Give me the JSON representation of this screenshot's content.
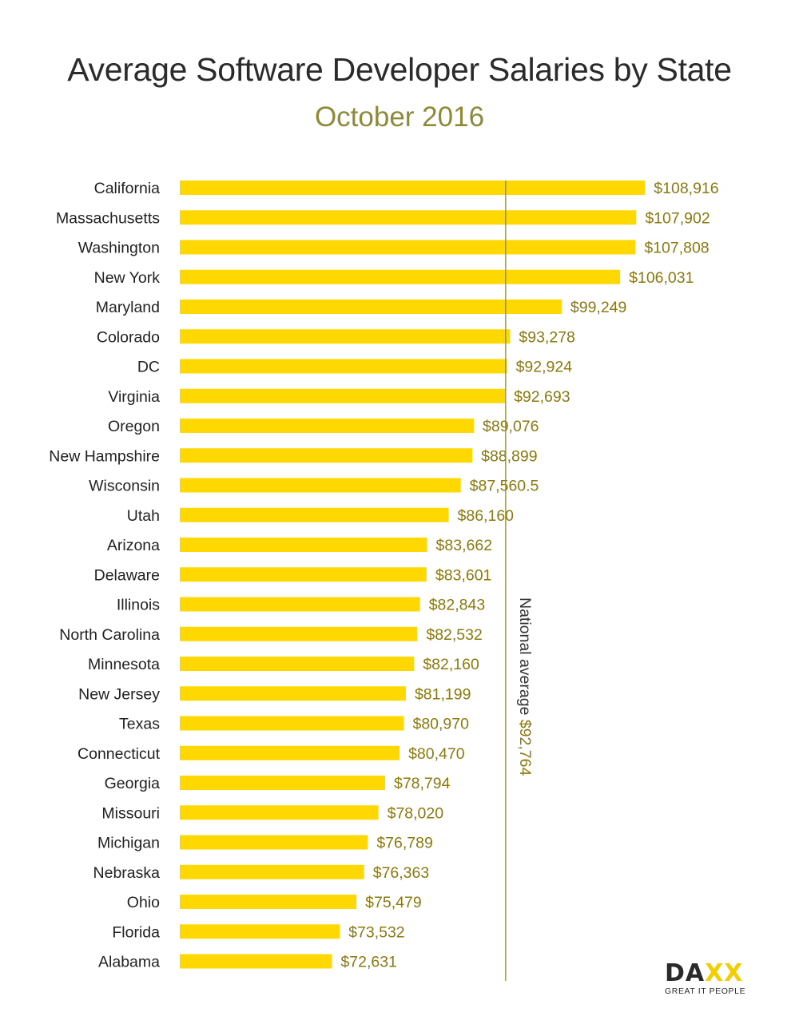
{
  "chart_data": {
    "type": "bar",
    "orientation": "horizontal",
    "title": "Average Software Developer Salaries by State",
    "subtitle": "October 2016",
    "categories": [
      "California",
      "Massachusetts",
      "Washington",
      "New York",
      "Maryland",
      "Colorado",
      "DC",
      "Virginia",
      "Oregon",
      "New Hampshire",
      "Wisconsin",
      "Utah",
      "Arizona",
      "Delaware",
      "Illinois",
      "North Carolina",
      "Minnesota",
      "New Jersey",
      "Texas",
      "Connecticut",
      "Georgia",
      "Missouri",
      "Michigan",
      "Nebraska",
      "Ohio",
      "Florida",
      "Alabama"
    ],
    "values": [
      108916,
      107902,
      107808,
      106031,
      99249,
      93278,
      92924,
      92693,
      89076,
      88899,
      87560.5,
      86160,
      83662,
      83601,
      82843,
      82532,
      82160,
      81199,
      80970,
      80470,
      78794,
      78020,
      76789,
      76363,
      75479,
      73532,
      72631
    ],
    "value_labels": [
      "$108,916",
      "$107,902",
      "$107,808",
      "$106,031",
      "$99,249",
      "$93,278",
      "$92,924",
      "$92,693",
      "$89,076",
      "$88,899",
      "$87,560.5",
      "$86,160",
      "$83,662",
      "$83,601",
      "$82,843",
      "$82,532",
      "$82,160",
      "$81,199",
      "$80,970",
      "$80,470",
      "$78,794",
      "$78,020",
      "$76,789",
      "$76,363",
      "$75,479",
      "$73,532",
      "$72,631"
    ],
    "xlim": [
      55000,
      110000
    ],
    "reference_line": {
      "value": 92764,
      "label": "National average $92,764"
    },
    "colors": {
      "bar": "#fed800",
      "value_label": "#8a7a10",
      "reference_line": "#8d8b3a",
      "category_label": "#222222"
    },
    "grid": false,
    "legend": "none"
  },
  "logo": {
    "name": "DA",
    "accent": "XX",
    "tagline": "GREAT IT PEOPLE"
  }
}
